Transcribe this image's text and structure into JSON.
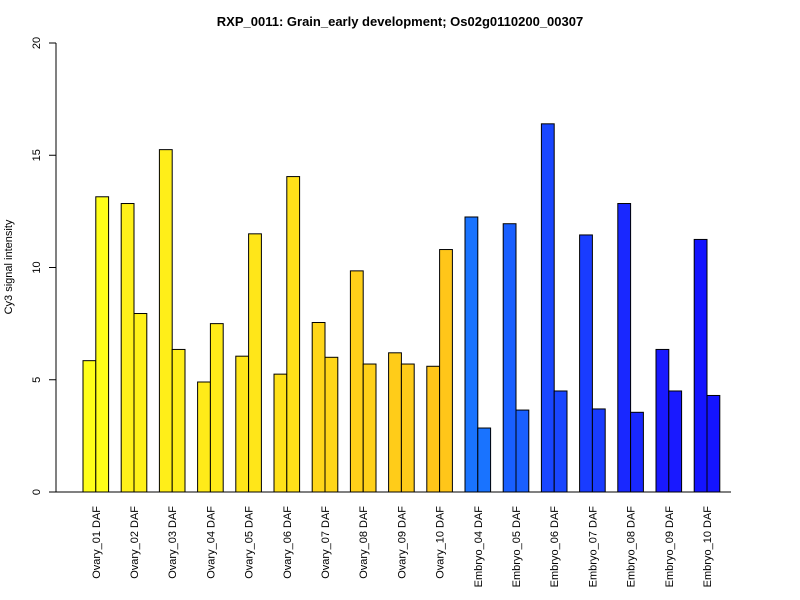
{
  "chart_data": {
    "type": "bar",
    "title": "RXP_0011: Grain_early development; Os02g0110200_00307",
    "xlabel": "",
    "ylabel": "Cy3 signal intensity",
    "ylim": [
      0,
      20
    ],
    "yticks": [
      "0",
      "5",
      "10",
      "15",
      "20"
    ],
    "categories": [
      "Ovary_01 DAF",
      "Ovary_02 DAF",
      "Ovary_03 DAF",
      "Ovary_04 DAF",
      "Ovary_05 DAF",
      "Ovary_06 DAF",
      "Ovary_07 DAF",
      "Ovary_08 DAF",
      "Ovary_09 DAF",
      "Ovary_10 DAF",
      "Embryo_04 DAF",
      "Embryo_05 DAF",
      "Embryo_06 DAF",
      "Embryo_07 DAF",
      "Embryo_08 DAF",
      "Embryo_09 DAF",
      "Embryo_10 DAF"
    ],
    "series": [
      {
        "values": [
          5.85,
          12.85,
          15.25,
          4.9,
          6.05,
          5.25,
          7.55,
          9.85,
          6.2,
          5.6,
          12.25,
          11.95,
          16.4,
          11.45,
          12.85,
          6.35,
          11.25
        ]
      },
      {
        "values": [
          13.15,
          7.95,
          6.35,
          7.5,
          11.5,
          14.05,
          6.0,
          5.7,
          5.7,
          10.8,
          2.85,
          3.65,
          4.5,
          3.7,
          3.55,
          4.5,
          4.3
        ]
      }
    ],
    "colors": [
      "#FFFF19",
      "#FFF119",
      "#FFEE19",
      "#FFEB19",
      "#FFE619",
      "#FFE119",
      "#FFD619",
      "#FFD019",
      "#FFCC19",
      "#FFC619",
      "#1973FF",
      "#195FFF",
      "#1946FF",
      "#193CFF",
      "#1928FF",
      "#1919FF",
      "#1414FF"
    ],
    "grid": false,
    "legend": "none"
  }
}
